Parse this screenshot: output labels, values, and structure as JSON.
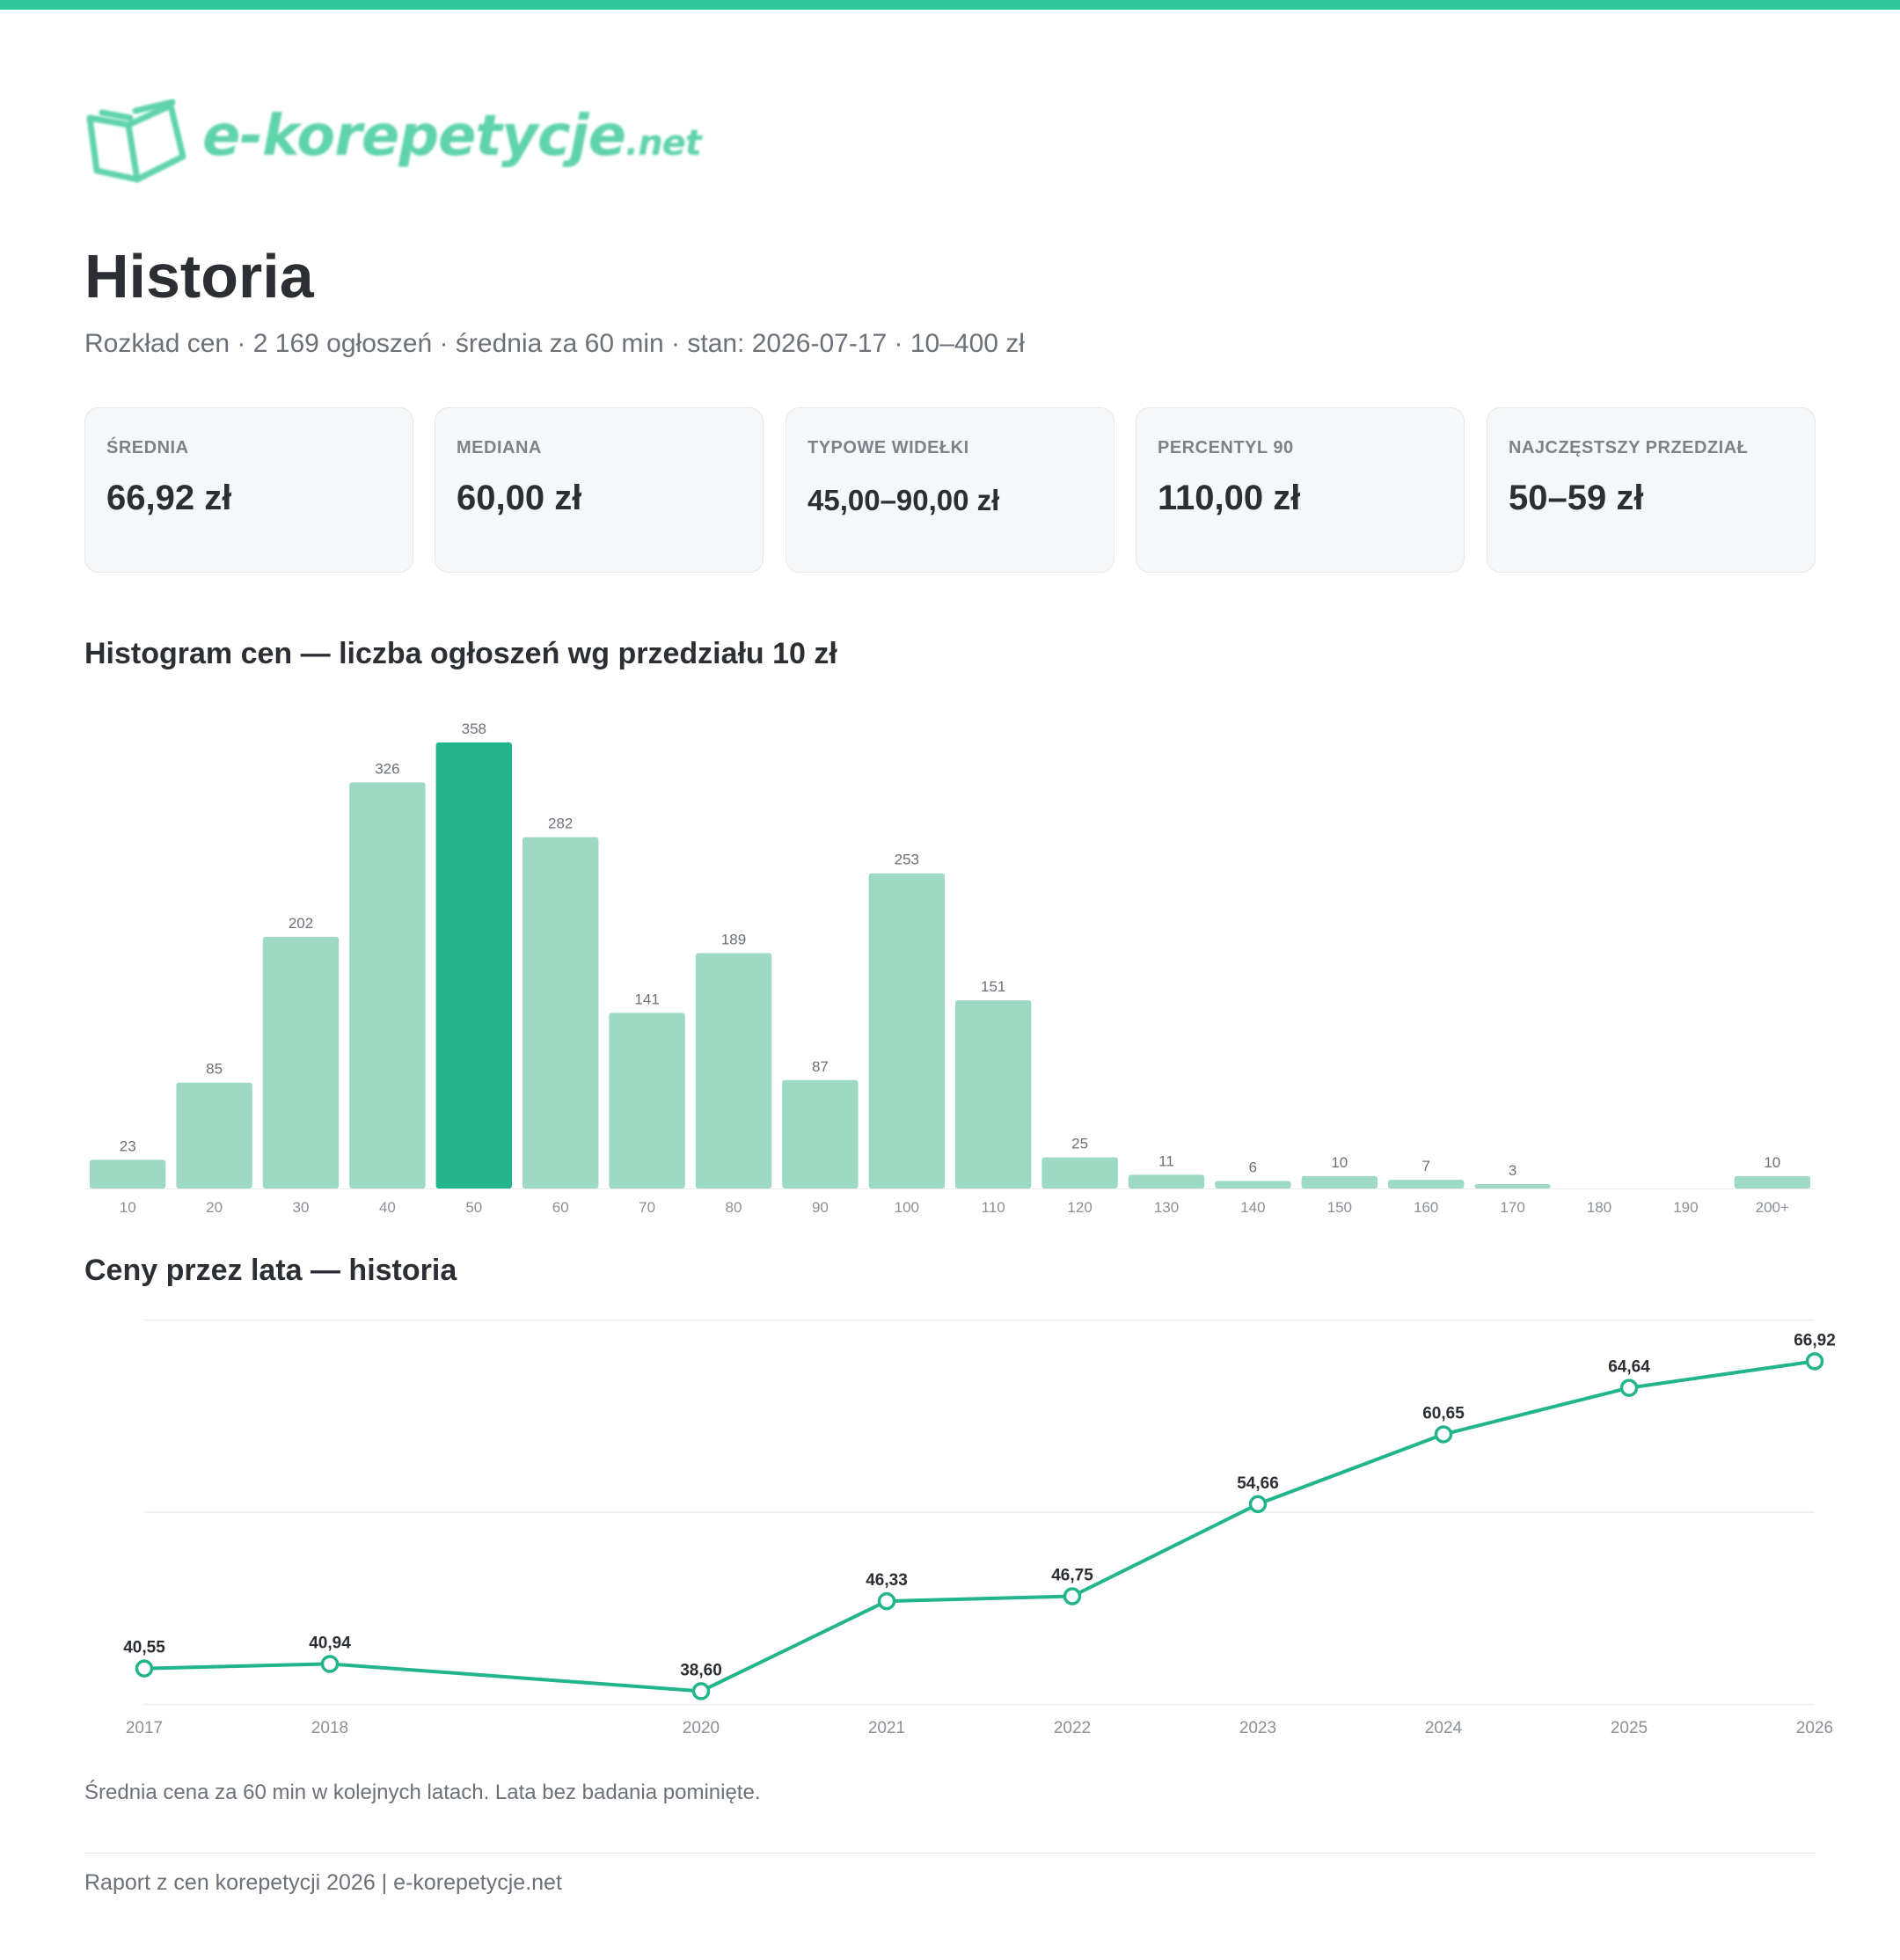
{
  "colors": {
    "accent": "#2ec79a",
    "bar": "#9ed9c3",
    "bar_highlight": "#22b48a",
    "line": "#22b48a"
  },
  "logo": {
    "name": "e-korepetycje",
    "tld": ".net"
  },
  "page": {
    "title": "Historia",
    "subtitle": "Rozkład cen · 2 169 ogłoszeń · średnia za 60 min · stan: 2026-07-17 · 10–400 zł"
  },
  "cards": [
    {
      "label": "ŚREDNIA",
      "value": "66,92 zł"
    },
    {
      "label": "MEDIANA",
      "value": "60,00 zł"
    },
    {
      "label": "TYPOWE WIDEŁKI",
      "value": "45,00–90,00 zł"
    },
    {
      "label": "PERCENTYL 90",
      "value": "110,00 zł"
    },
    {
      "label": "NAJCZĘSTSZY PRZEDZIAŁ",
      "value": "50–59 zł"
    }
  ],
  "sections": {
    "histogram_title": "Histogram cen — liczba ogłoszeń wg przedziału 10 zł",
    "line_title": "Ceny przez lata — historia",
    "line_note": "Średnia cena za 60 min w kolejnych latach. Lata bez badania pominięte."
  },
  "footer": {
    "text": "Raport z cen korepetycji 2026 | e-korepetycje.net"
  },
  "chart_data": [
    {
      "type": "bar",
      "title": "Histogram cen — liczba ogłoszeń wg przedziału 10 zł",
      "categories": [
        "10",
        "20",
        "30",
        "40",
        "50",
        "60",
        "70",
        "80",
        "90",
        "100",
        "110",
        "120",
        "130",
        "140",
        "150",
        "160",
        "170",
        "180",
        "190",
        "200+"
      ],
      "values": [
        23,
        85,
        202,
        326,
        358,
        282,
        141,
        189,
        87,
        253,
        151,
        25,
        11,
        6,
        10,
        7,
        3,
        0,
        0,
        10
      ],
      "highlight_category": "50",
      "ylim": [
        0,
        358
      ],
      "grid": false
    },
    {
      "type": "line",
      "title": "Ceny przez lata — historia",
      "x": [
        "2017",
        "2018",
        "2020",
        "2021",
        "2022",
        "2023",
        "2024",
        "2025",
        "2026"
      ],
      "values": [
        40.55,
        40.94,
        38.6,
        46.33,
        46.75,
        54.66,
        60.65,
        64.64,
        66.92
      ],
      "labels": [
        "40,55",
        "40,94",
        "38,60",
        "46,33",
        "46,75",
        "54,66",
        "60,65",
        "64,64",
        "66,92"
      ],
      "ylim": [
        37.5,
        70.5
      ],
      "grid": true
    }
  ]
}
